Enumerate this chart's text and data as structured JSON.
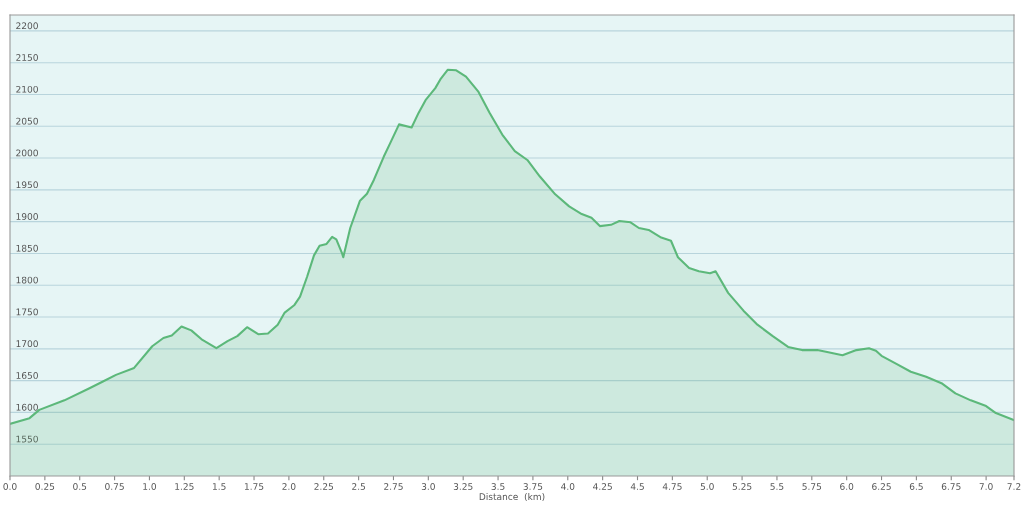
{
  "chart_data": {
    "type": "area",
    "xlabel": "Distance  (km)",
    "x": [
      0,
      0.14,
      0.21,
      0.39,
      0.57,
      0.67,
      0.76,
      0.89,
      1.02,
      1.1,
      1.16,
      1.23,
      1.3,
      1.38,
      1.48,
      1.56,
      1.63,
      1.7,
      1.78,
      1.85,
      1.92,
      1.97,
      2.04,
      2.08,
      2.13,
      2.18,
      2.22,
      2.27,
      2.31,
      2.34,
      2.38,
      2.39,
      2.44,
      2.51,
      2.56,
      2.61,
      2.68,
      2.73,
      2.79,
      2.88,
      2.93,
      2.98,
      3.05,
      3.09,
      3.14,
      3.2,
      3.27,
      3.36,
      3.44,
      3.53,
      3.62,
      3.71,
      3.8,
      3.91,
      4.01,
      4.1,
      4.17,
      4.23,
      4.31,
      4.37,
      4.45,
      4.51,
      4.58,
      4.67,
      4.74,
      4.79,
      4.87,
      4.94,
      5.02,
      5.06,
      5.15,
      5.26,
      5.36,
      5.47,
      5.58,
      5.68,
      5.79,
      5.86,
      5.97,
      6.07,
      6.16,
      6.21,
      6.25,
      6.36,
      6.46,
      6.57,
      6.68,
      6.78,
      6.89,
      7.0,
      7.07,
      7.2
    ],
    "series": [
      {
        "color": "#5cb87a",
        "values": [
          1582,
          1591,
          1604,
          1619,
          1638,
          1649,
          1659,
          1670,
          1704,
          1717,
          1721,
          1735,
          1729,
          1714,
          1701,
          1712,
          1720,
          1734,
          1723,
          1724,
          1738,
          1757,
          1769,
          1782,
          1813,
          1847,
          1862,
          1865,
          1876,
          1872,
          1851,
          1844,
          1890,
          1933,
          1944,
          1966,
          2002,
          2025,
          2053,
          2048,
          2071,
          2091,
          2110,
          2125,
          2139,
          2138,
          2128,
          2104,
          2071,
          2037,
          2011,
          1997,
          1971,
          1943,
          1924,
          1912,
          1906,
          1893,
          1895,
          1901,
          1899,
          1890,
          1887,
          1875,
          1870,
          1844,
          1827,
          1822,
          1819,
          1822,
          1788,
          1760,
          1738,
          1720,
          1703,
          1698,
          1698,
          1695,
          1690,
          1698,
          1701,
          1697,
          1689,
          1676,
          1664,
          1656,
          1646,
          1630,
          1619,
          1610,
          1599,
          1588
        ]
      }
    ],
    "xlim": [
      0,
      7.2
    ],
    "xticks": [
      {
        "value": 0,
        "label": "0.0"
      },
      0.25,
      0.5,
      0.75,
      {
        "value": 1,
        "label": "1.0"
      },
      1.25,
      1.5,
      1.75,
      {
        "value": 2,
        "label": "2.0"
      },
      2.25,
      2.5,
      2.75,
      {
        "value": 3,
        "label": "3.0"
      },
      3.25,
      3.5,
      3.75,
      {
        "value": 4,
        "label": "4.0"
      },
      4.25,
      4.5,
      4.75,
      {
        "value": 5,
        "label": "5.0"
      },
      5.25,
      5.5,
      5.75,
      {
        "value": 6,
        "label": "6.0"
      },
      6.25,
      6.5,
      6.75,
      {
        "value": 7,
        "label": "7.0"
      },
      7.2
    ],
    "ylim": [
      1500,
      2225
    ],
    "yticks": [
      1550,
      1600,
      1650,
      1700,
      1750,
      1800,
      1850,
      1900,
      1950,
      2000,
      2050,
      2100,
      2150,
      2200
    ],
    "grid": "y"
  }
}
